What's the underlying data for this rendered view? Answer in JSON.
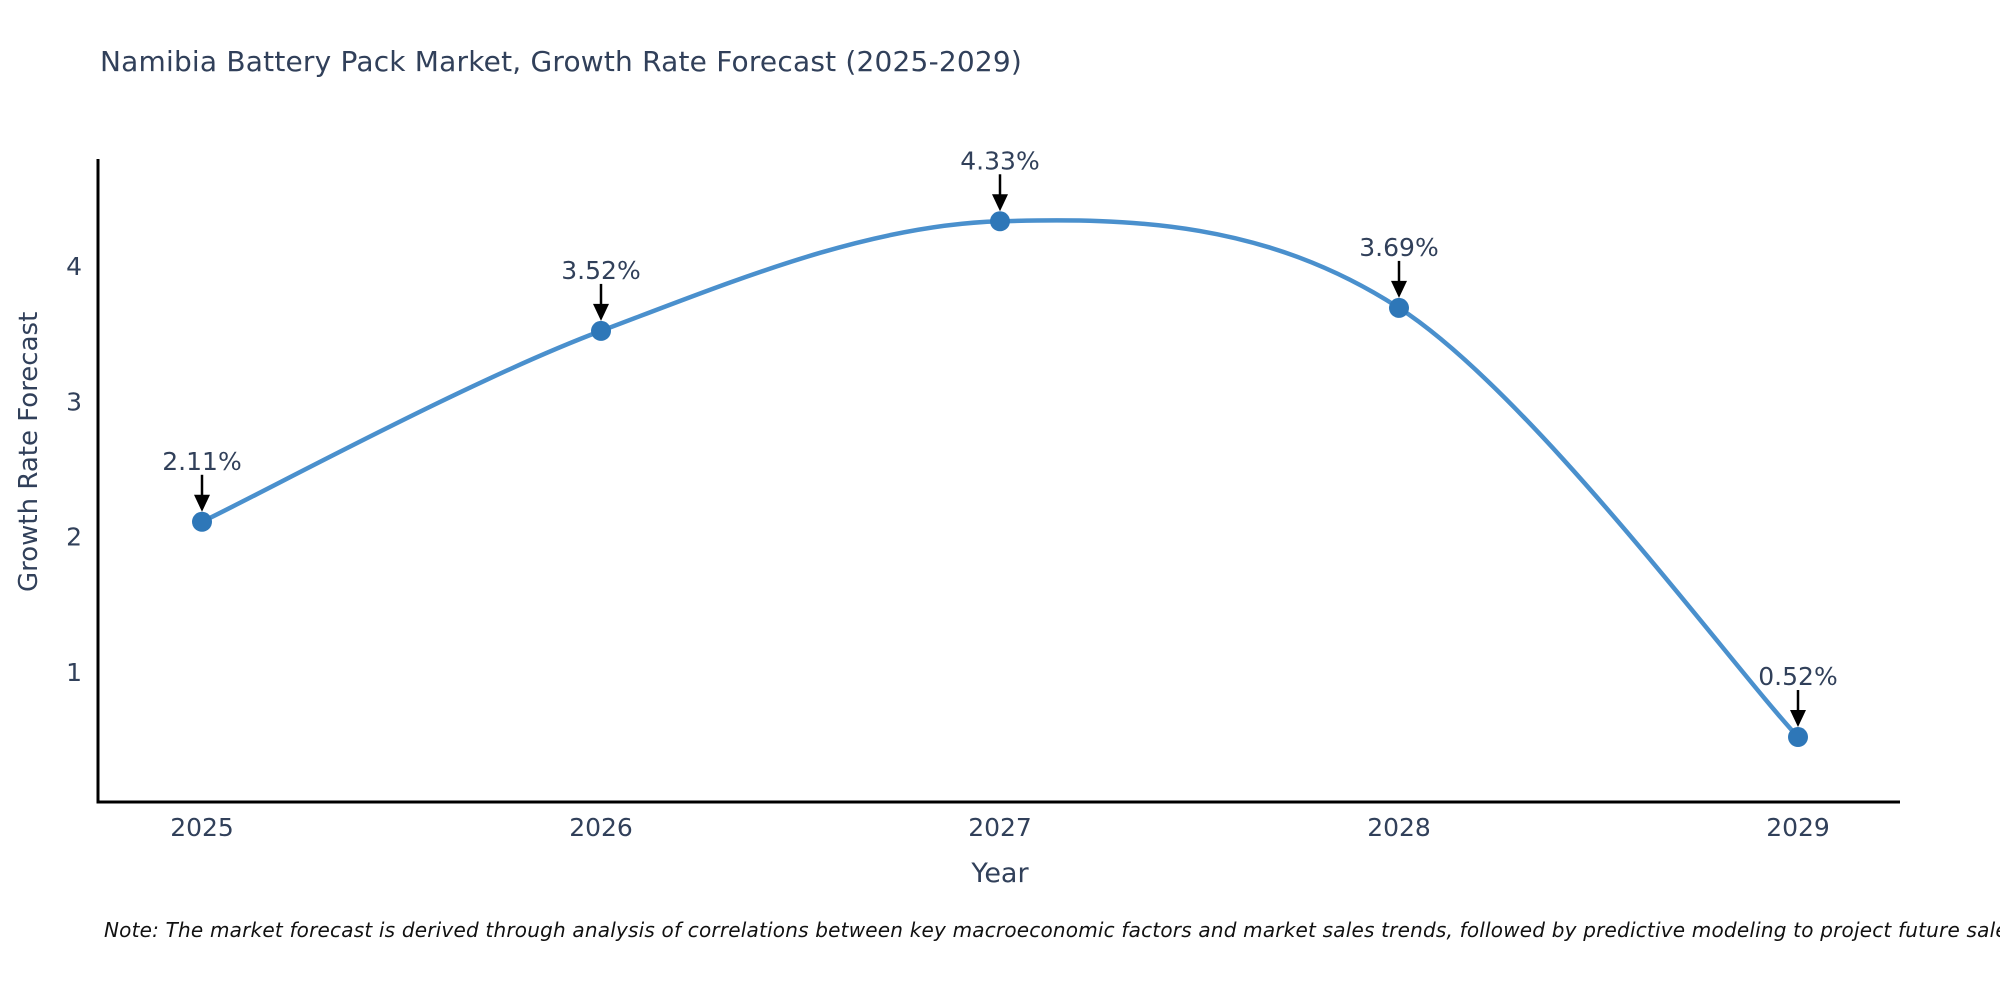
{
  "chart_data": {
    "type": "line",
    "title": "Namibia Battery Pack Market, Growth Rate Forecast (2025-2029)",
    "xlabel": "Year",
    "ylabel": "Growth Rate Forecast",
    "categories": [
      "2025",
      "2026",
      "2027",
      "2028",
      "2029"
    ],
    "values": [
      2.11,
      3.52,
      4.33,
      3.69,
      0.52
    ],
    "point_labels": [
      "2.11%",
      "3.52%",
      "4.33%",
      "3.69%",
      "0.52%"
    ],
    "yticks": [
      1,
      2,
      3,
      4
    ],
    "ylim": [
      0.04,
      4.79
    ],
    "grid": false,
    "legend": "none",
    "line_style": "smooth-spline-with-markers",
    "annotation_style": "value-label-with-down-arrow"
  },
  "note": "Note: The market forecast is derived through analysis of correlations between key macroeconomic factors and market sales trends, followed by predictive modeling to project future sales.",
  "colors": {
    "text": "#31405a",
    "note_text": "#111111",
    "line": "#4a90cd",
    "marker": "#2e77b8",
    "axis": "#000000",
    "annotation": "#000000",
    "background": "#ffffff"
  }
}
